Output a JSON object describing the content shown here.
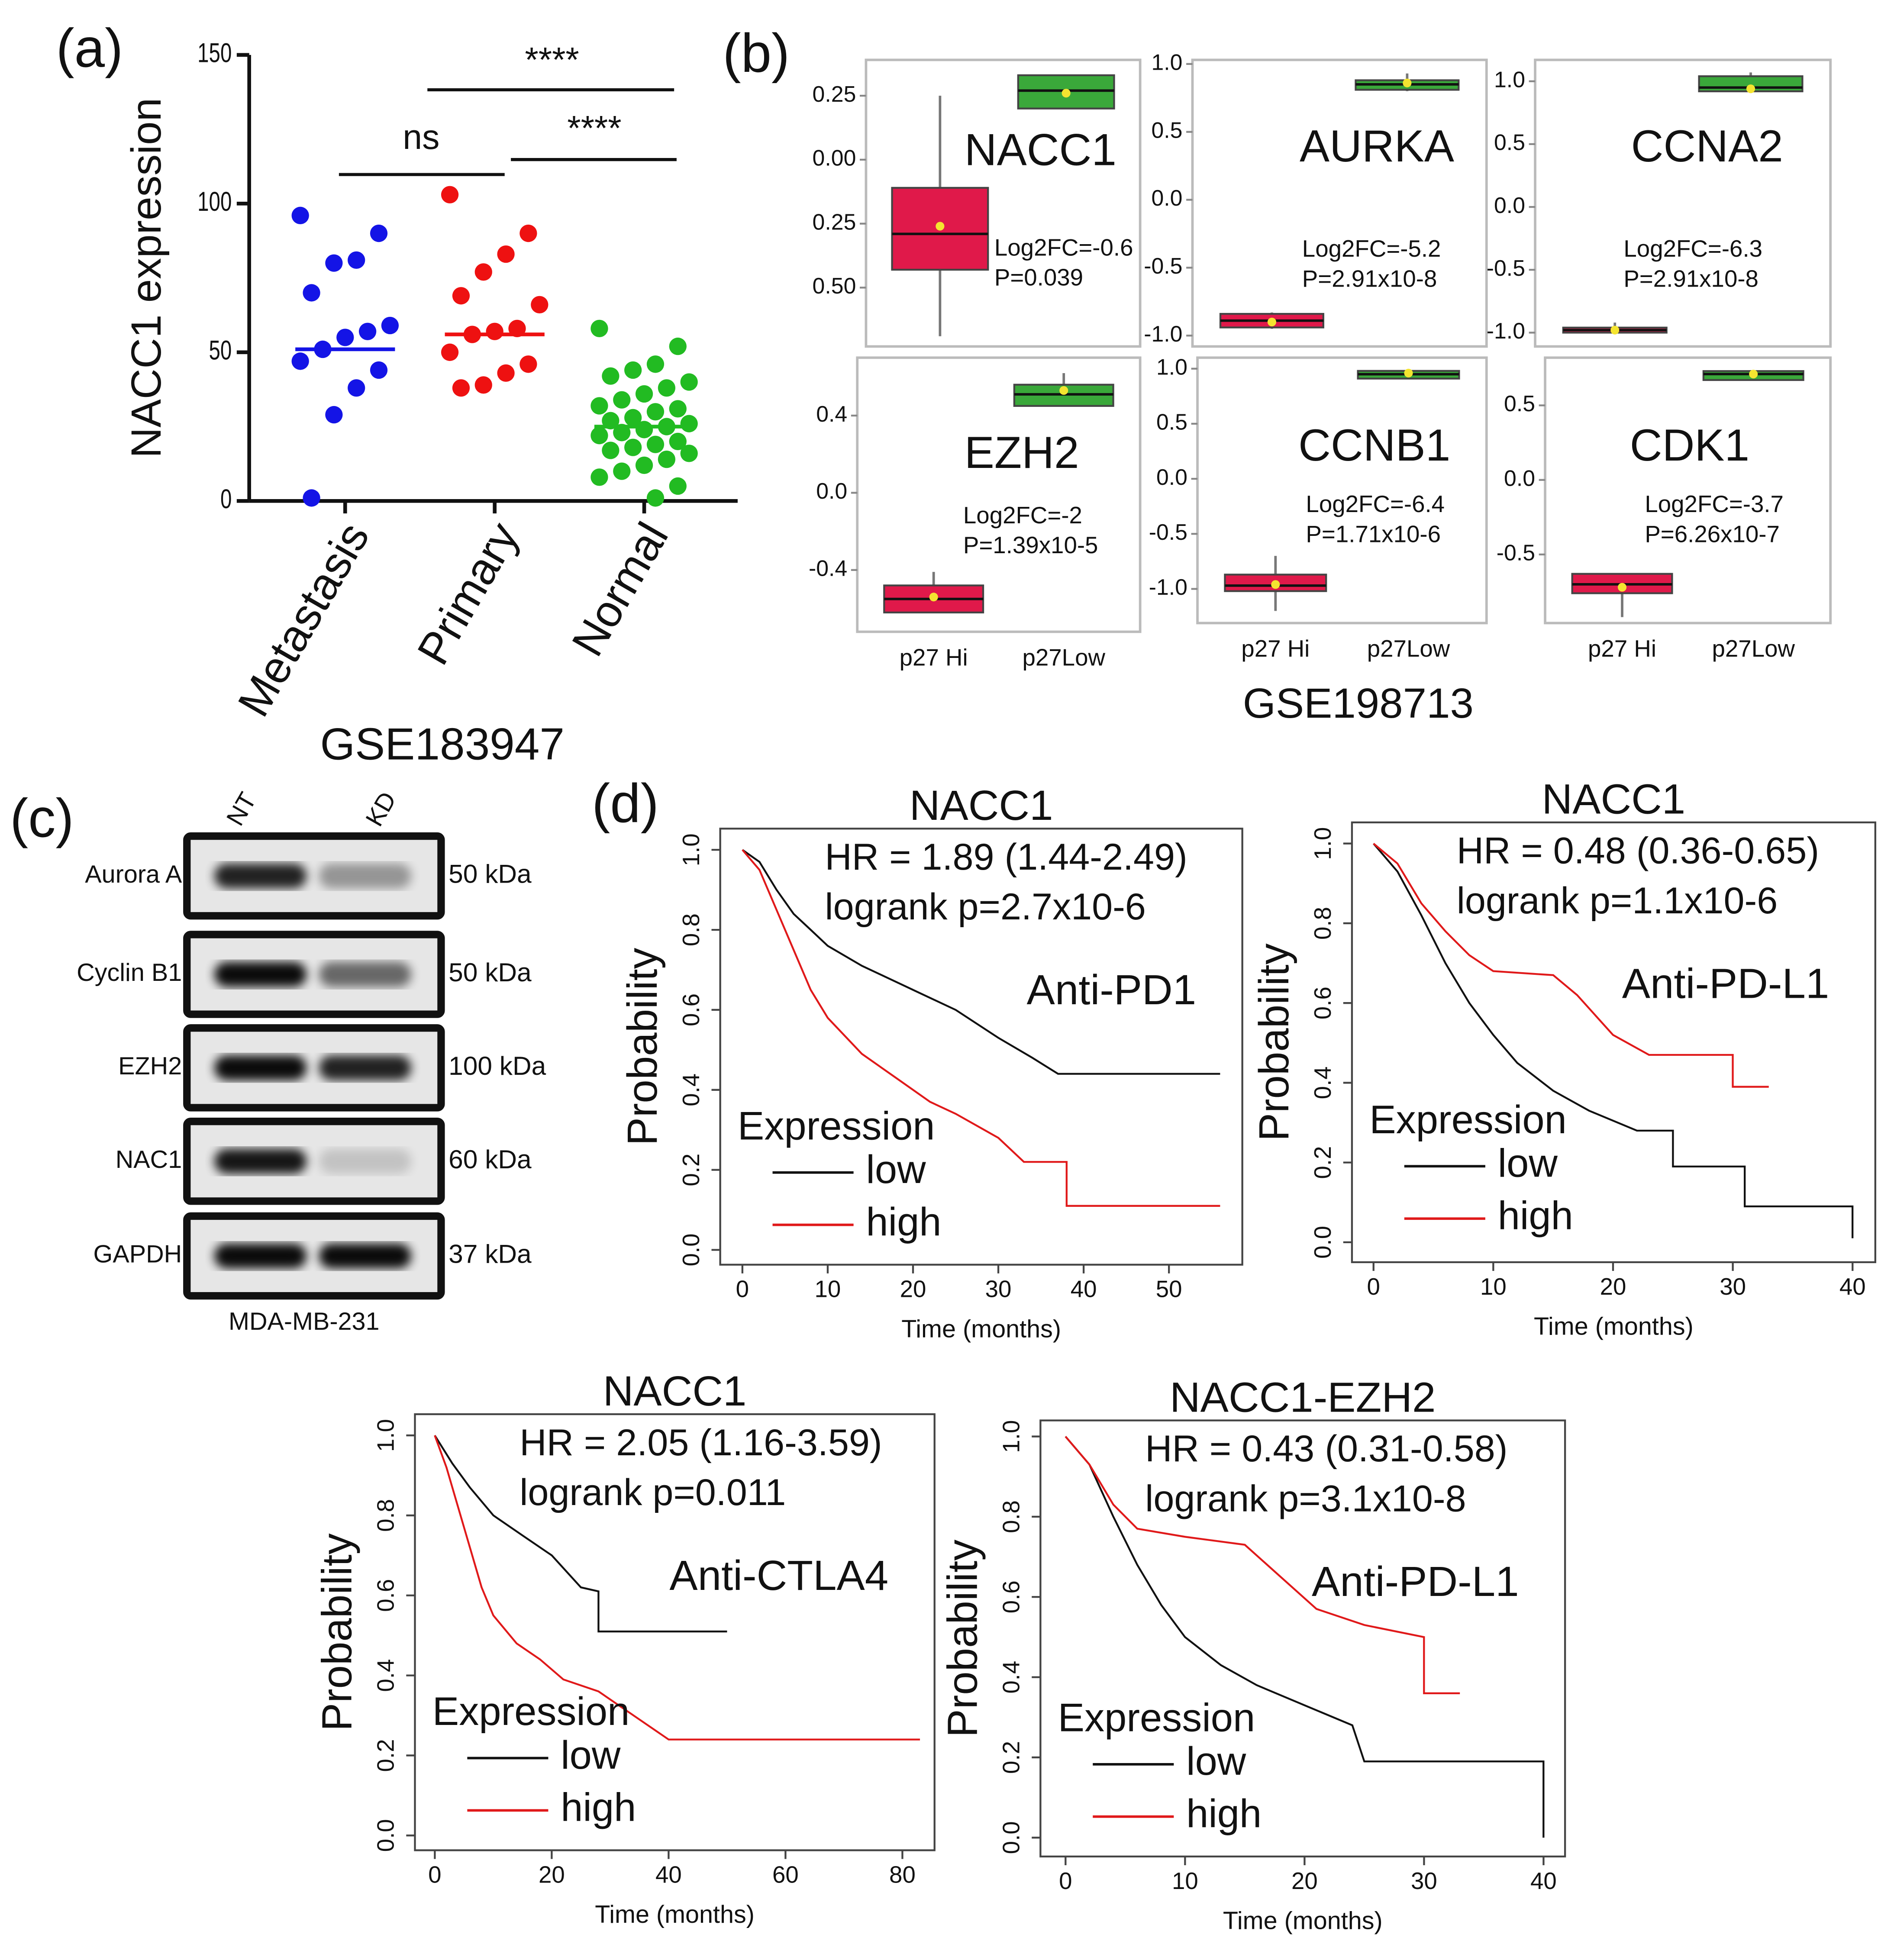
{
  "chart_data": [
    {
      "type": "strip",
      "panel_label": "(a)",
      "ylabel": "NACC1 expression",
      "xlabel": "GSE183947",
      "categories": [
        "Metastasis",
        "Primary",
        "Normal"
      ],
      "ylim": [
        0,
        150
      ],
      "yticks": [
        0,
        50,
        100,
        150
      ],
      "series": [
        {
          "color": "#1414e6",
          "median": 51,
          "values": [
            96,
            90,
            81,
            80,
            70,
            59,
            57,
            55,
            51,
            47,
            44,
            38,
            29,
            1
          ]
        },
        {
          "color": "#ee1111",
          "median": 56,
          "values": [
            103,
            90,
            83,
            77,
            69,
            66,
            58,
            57,
            56,
            50,
            46,
            43,
            39,
            38
          ]
        },
        {
          "color": "#22bb22",
          "median": 25,
          "values": [
            58,
            52,
            46,
            44,
            42,
            40,
            38,
            36,
            34,
            32,
            31,
            30,
            28,
            27,
            26,
            25,
            24,
            23,
            22,
            20,
            19,
            18,
            17,
            16,
            14,
            12,
            10,
            8,
            5,
            1
          ]
        }
      ],
      "annotations": [
        "ns",
        "****",
        "****"
      ]
    },
    {
      "type": "box",
      "panel_label": "(b)",
      "xlabel": "GSE198713",
      "categories": [
        "p27 Hi",
        "p27Low"
      ],
      "colors": [
        "#e0194a",
        "#3aa83a"
      ],
      "panels": [
        {
          "title": "NACC1",
          "annotations": [
            "Log2FC=-0.6",
            "P=0.039"
          ],
          "ylim": [
            -0.73,
            0.39
          ],
          "yticks": [
            0.25,
            {
              "value": 0,
              "label": "0.00"
            },
            {
              "value": -0.25,
              "label": "0.25"
            },
            {
              "value": -0.5,
              "label": "0.50"
            }
          ],
          "boxes": [
            {
              "min": -0.69,
              "q1": -0.43,
              "median": -0.29,
              "q3": -0.11,
              "max": 0.25,
              "mean": -0.26
            },
            {
              "min": 0.2,
              "q1": 0.2,
              "median": 0.27,
              "q3": 0.33,
              "max": 0.33,
              "mean": 0.26
            }
          ]
        },
        {
          "title": "AURKA",
          "annotations": [
            "Log2FC=-5.2",
            "P=2.91x10-8"
          ],
          "ylim": [
            -1.08,
            1.03
          ],
          "yticks": [
            {
              "value": 1,
              "label": "1.0"
            },
            0.5,
            {
              "value": 0,
              "label": "0.0"
            },
            -0.5,
            {
              "value": -1,
              "label": "-1.0"
            }
          ],
          "boxes": [
            {
              "min": -0.95,
              "q1": -0.94,
              "median": -0.89,
              "q3": -0.84,
              "max": -0.83,
              "mean": -0.9
            },
            {
              "min": 0.8,
              "q1": 0.81,
              "median": 0.85,
              "q3": 0.88,
              "max": 0.93,
              "mean": 0.86
            }
          ]
        },
        {
          "title": "CCNA2",
          "annotations": [
            "Log2FC=-6.3",
            "P=2.91x10-8"
          ],
          "ylim": [
            -1.11,
            1.17
          ],
          "yticks": [
            {
              "value": 1,
              "label": "1.0"
            },
            0.5,
            {
              "value": 0,
              "label": "0.0"
            },
            -0.5,
            {
              "value": -1,
              "label": "-1.0"
            }
          ],
          "boxes": [
            {
              "min": -1.0,
              "q1": -1.0,
              "median": -0.98,
              "q3": -0.96,
              "max": -0.92,
              "mean": -0.98
            },
            {
              "min": 0.92,
              "q1": 0.92,
              "median": 0.95,
              "q3": 1.04,
              "max": 1.07,
              "mean": 0.94
            }
          ]
        },
        {
          "title": "EZH2",
          "annotations": [
            "Log2FC=-2",
            "P=1.39x10-5"
          ],
          "ylim": [
            -0.72,
            0.7
          ],
          "yticks": [
            0.4,
            {
              "value": 0,
              "label": "0.0"
            },
            -0.4
          ],
          "boxes": [
            {
              "min": -0.62,
              "q1": -0.62,
              "median": -0.55,
              "q3": -0.48,
              "max": -0.41,
              "mean": -0.54
            },
            {
              "min": 0.45,
              "q1": 0.45,
              "median": 0.51,
              "q3": 0.56,
              "max": 0.62,
              "mean": 0.53
            }
          ]
        },
        {
          "title": "CCNB1",
          "annotations": [
            "Log2FC=-6.4",
            "P=1.71x10-6"
          ],
          "ylim": [
            -1.31,
            1.1
          ],
          "yticks": [
            {
              "value": 1,
              "label": "1.0"
            },
            0.5,
            {
              "value": 0,
              "label": "0.0"
            },
            -0.5,
            {
              "value": -1,
              "label": "-1.0"
            }
          ],
          "boxes": [
            {
              "min": -1.2,
              "q1": -1.02,
              "median": -0.97,
              "q3": -0.87,
              "max": -0.7,
              "mean": -0.96
            },
            {
              "min": 0.91,
              "q1": 0.91,
              "median": 0.95,
              "q3": 0.98,
              "max": 0.99,
              "mean": 0.96
            }
          ]
        },
        {
          "title": "CDK1",
          "annotations": [
            "Log2FC=-3.7",
            "P=6.26x10-7"
          ],
          "ylim": [
            -0.96,
            0.82
          ],
          "yticks": [
            0.5,
            {
              "value": 0,
              "label": "0.0"
            },
            -0.5
          ],
          "boxes": [
            {
              "min": -0.92,
              "q1": -0.76,
              "median": -0.7,
              "q3": -0.63,
              "max": -0.63,
              "mean": -0.72
            },
            {
              "min": 0.67,
              "q1": 0.67,
              "median": 0.71,
              "q3": 0.73,
              "max": 0.73,
              "mean": 0.71
            }
          ]
        }
      ]
    },
    {
      "type": "line",
      "panel_label": "(d)",
      "title": "NACC1",
      "annotations": [
        "HR = 1.89 (1.44-2.49)",
        "logrank p=2.7x10-6",
        "Anti-PD1"
      ],
      "legend_title": "Expression",
      "xlabel": "Time (months)",
      "ylabel": "Probability",
      "xlim": [
        -2.6,
        58.6
      ],
      "ylim": [
        -0.037,
        1.053
      ],
      "xticks": [
        0,
        10,
        20,
        30,
        40,
        50
      ],
      "yticks": [
        {
          "value": 0,
          "label": "0.0"
        },
        0.2,
        0.4,
        0.6,
        0.8,
        {
          "value": 1,
          "label": "1.0"
        }
      ],
      "series": [
        {
          "name": "low",
          "color": "#111111",
          "x": [
            0,
            2,
            4,
            6,
            8,
            10,
            14,
            20,
            25,
            30,
            34,
            37,
            56
          ],
          "values": [
            1,
            0.97,
            0.9,
            0.84,
            0.8,
            0.76,
            0.71,
            0.65,
            0.6,
            0.53,
            0.48,
            0.44,
            0.44
          ]
        },
        {
          "name": "high",
          "color": "#e0191a",
          "x": [
            0,
            2,
            4,
            6,
            8,
            10,
            14,
            18,
            22,
            25,
            30,
            33,
            38,
            38,
            56
          ],
          "values": [
            1,
            0.95,
            0.85,
            0.75,
            0.65,
            0.58,
            0.49,
            0.43,
            0.37,
            0.34,
            0.28,
            0.22,
            0.22,
            0.11,
            0.11
          ]
        }
      ]
    },
    {
      "type": "line",
      "title": "NACC1",
      "annotations": [
        "HR = 0.48 (0.36-0.65)",
        "logrank p=1.1x10-6",
        "Anti-PD-L1"
      ],
      "legend_title": "Expression",
      "xlabel": "Time (months)",
      "ylabel": "Probability",
      "xlim": [
        -1.8,
        41.9
      ],
      "ylim": [
        -0.05,
        1.053
      ],
      "xticks": [
        0,
        10,
        20,
        30,
        40
      ],
      "yticks": [
        {
          "value": 0,
          "label": "0.0"
        },
        0.2,
        0.4,
        0.6,
        0.8,
        {
          "value": 1,
          "label": "1.0"
        }
      ],
      "series": [
        {
          "name": "low",
          "color": "#111111",
          "x": [
            0,
            2,
            4,
            6,
            8,
            10,
            12,
            15,
            18,
            22,
            25,
            25,
            31,
            31,
            40,
            40
          ],
          "values": [
            1,
            0.93,
            0.82,
            0.7,
            0.6,
            0.52,
            0.45,
            0.38,
            0.33,
            0.28,
            0.28,
            0.19,
            0.19,
            0.09,
            0.09,
            0.01
          ]
        },
        {
          "name": "high",
          "color": "#e0191a",
          "x": [
            0,
            2,
            4,
            6,
            8,
            10,
            15,
            17,
            20,
            23,
            30,
            30,
            33
          ],
          "values": [
            1,
            0.95,
            0.85,
            0.78,
            0.72,
            0.68,
            0.67,
            0.62,
            0.52,
            0.47,
            0.47,
            0.39,
            0.39
          ]
        }
      ]
    },
    {
      "type": "line",
      "title": "NACC1",
      "annotations": [
        "HR = 2.05 (1.16-3.59)",
        "logrank p=0.011",
        "Anti-CTLA4"
      ],
      "legend_title": "Expression",
      "xlabel": "Time (months)",
      "ylabel": "Probability",
      "xlim": [
        -3.4,
        85.5
      ],
      "ylim": [
        -0.037,
        1.053
      ],
      "xticks": [
        0,
        20,
        40,
        60,
        80
      ],
      "yticks": [
        {
          "value": 0,
          "label": "0.0"
        },
        0.2,
        0.4,
        0.6,
        0.8,
        {
          "value": 1,
          "label": "1.0"
        }
      ],
      "series": [
        {
          "name": "low",
          "color": "#111111",
          "x": [
            0,
            3,
            6,
            10,
            15,
            20,
            25,
            28,
            28,
            50
          ],
          "values": [
            1,
            0.93,
            0.87,
            0.8,
            0.75,
            0.7,
            0.62,
            0.61,
            0.51,
            0.51
          ]
        },
        {
          "name": "high",
          "color": "#e0191a",
          "x": [
            0,
            2,
            4,
            6,
            8,
            10,
            14,
            18,
            22,
            28,
            35,
            40,
            83
          ],
          "values": [
            1,
            0.92,
            0.82,
            0.72,
            0.62,
            0.55,
            0.48,
            0.44,
            0.39,
            0.36,
            0.29,
            0.24,
            0.24
          ]
        }
      ]
    },
    {
      "type": "line",
      "title": "NACC1-EZH2",
      "annotations": [
        "HR = 0.43 (0.31-0.58)",
        "logrank p=3.1x10-8",
        "Anti-PD-L1"
      ],
      "legend_title": "Expression",
      "xlabel": "Time (months)",
      "ylabel": "Probability",
      "xlim": [
        -2.1,
        41.8
      ],
      "ylim": [
        -0.047,
        1.04
      ],
      "xticks": [
        0,
        10,
        20,
        30,
        40
      ],
      "yticks": [
        {
          "value": 0,
          "label": "0.0"
        },
        0.2,
        0.4,
        0.6,
        0.8,
        {
          "value": 1,
          "label": "1.0"
        }
      ],
      "series": [
        {
          "name": "low",
          "color": "#111111",
          "x": [
            0,
            2,
            4,
            6,
            8,
            10,
            13,
            16,
            20,
            24,
            25,
            40,
            40
          ],
          "values": [
            1,
            0.93,
            0.8,
            0.68,
            0.58,
            0.5,
            0.43,
            0.38,
            0.33,
            0.28,
            0.19,
            0.19,
            0
          ]
        },
        {
          "name": "high",
          "color": "#e0191a",
          "x": [
            0,
            2,
            4,
            6,
            10,
            15,
            18,
            21,
            25,
            30,
            30,
            33
          ],
          "values": [
            1,
            0.93,
            0.83,
            0.77,
            0.75,
            0.73,
            0.65,
            0.57,
            0.53,
            0.5,
            0.36,
            0.36
          ]
        }
      ]
    }
  ],
  "western_blot": {
    "panel_label": "(c)",
    "lanes": [
      "NT",
      "KD"
    ],
    "cell_line": "MDA-MB-231",
    "rows": [
      {
        "protein": "Aurora A",
        "size": "50 kDa"
      },
      {
        "protein": "Cyclin B1",
        "size": "50 kDa"
      },
      {
        "protein": "EZH2",
        "size": "100 kDa"
      },
      {
        "protein": "NAC1",
        "size": "60 kDa"
      },
      {
        "protein": "GAPDH",
        "size": "37 kDa"
      }
    ]
  }
}
